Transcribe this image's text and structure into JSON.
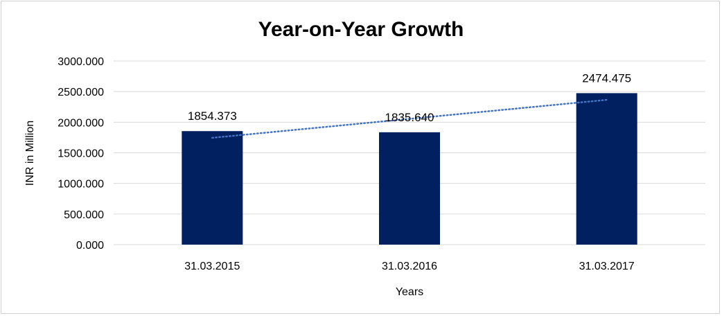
{
  "chart_data": {
    "type": "bar",
    "title": "Year-on-Year Growth",
    "xlabel": "Years",
    "ylabel": "INR in Million",
    "categories": [
      "31.03.2015",
      "31.03.2016",
      "31.03.2017"
    ],
    "values": [
      1854.373,
      1835.64,
      2474.475
    ],
    "data_labels": [
      "1854.373",
      "1835.640",
      "2474.475"
    ],
    "y_ticks": [
      "0.000",
      "500.000",
      "1000.000",
      "1500.000",
      "2000.000",
      "2500.000",
      "3000.000"
    ],
    "ylim": [
      0,
      3000
    ],
    "grid": true,
    "legend": "none",
    "trendline": {
      "type": "linear",
      "style": "dotted",
      "color": "#4472c4"
    },
    "colors": {
      "bar": "#002060",
      "grid": "#d9d9d9",
      "trendline": "#4472c4"
    }
  }
}
